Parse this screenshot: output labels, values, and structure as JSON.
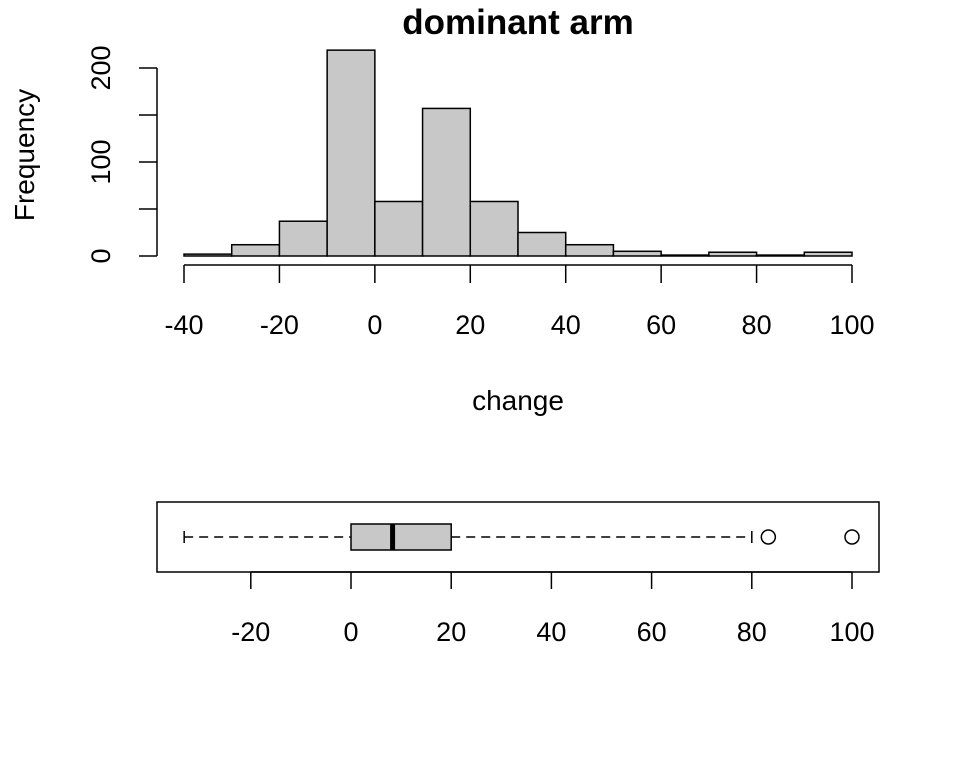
{
  "chart_data": [
    {
      "type": "histogram",
      "title": "dominant arm",
      "xlabel": "change",
      "ylabel": "Frequency",
      "xlim": [
        -40,
        100
      ],
      "ylim": [
        0,
        220
      ],
      "x_ticks": [
        "-40",
        "-20",
        "0",
        "20",
        "40",
        "60",
        "80",
        "100"
      ],
      "y_ticks": [
        "0",
        "100",
        "200"
      ],
      "bins": [
        {
          "from": -40,
          "to": -30,
          "count": 2
        },
        {
          "from": -30,
          "to": -20,
          "count": 12
        },
        {
          "from": -20,
          "to": -10,
          "count": 37
        },
        {
          "from": -10,
          "to": 0,
          "count": 219
        },
        {
          "from": 0,
          "to": 10,
          "count": 58
        },
        {
          "from": 10,
          "to": 20,
          "count": 157
        },
        {
          "from": 20,
          "to": 30,
          "count": 58
        },
        {
          "from": 30,
          "to": 40,
          "count": 25
        },
        {
          "from": 40,
          "to": 50,
          "count": 12
        },
        {
          "from": 50,
          "to": 60,
          "count": 5
        },
        {
          "from": 60,
          "to": 70,
          "count": 1
        },
        {
          "from": 70,
          "to": 80,
          "count": 4
        },
        {
          "from": 80,
          "to": 90,
          "count": 1
        },
        {
          "from": 90,
          "to": 100,
          "count": 4
        }
      ],
      "bar_color": "#c8c8c8"
    },
    {
      "type": "boxplot",
      "orientation": "horizontal",
      "xlim": [
        -35,
        105
      ],
      "x_ticks": [
        "-20",
        "0",
        "20",
        "40",
        "60",
        "80",
        "100"
      ],
      "whisker_low": -33.3,
      "q1": 0,
      "median": 8.3,
      "q3": 20,
      "whisker_high": 80,
      "outliers": [
        83.3,
        100
      ],
      "box_color": "#c8c8c8"
    }
  ]
}
